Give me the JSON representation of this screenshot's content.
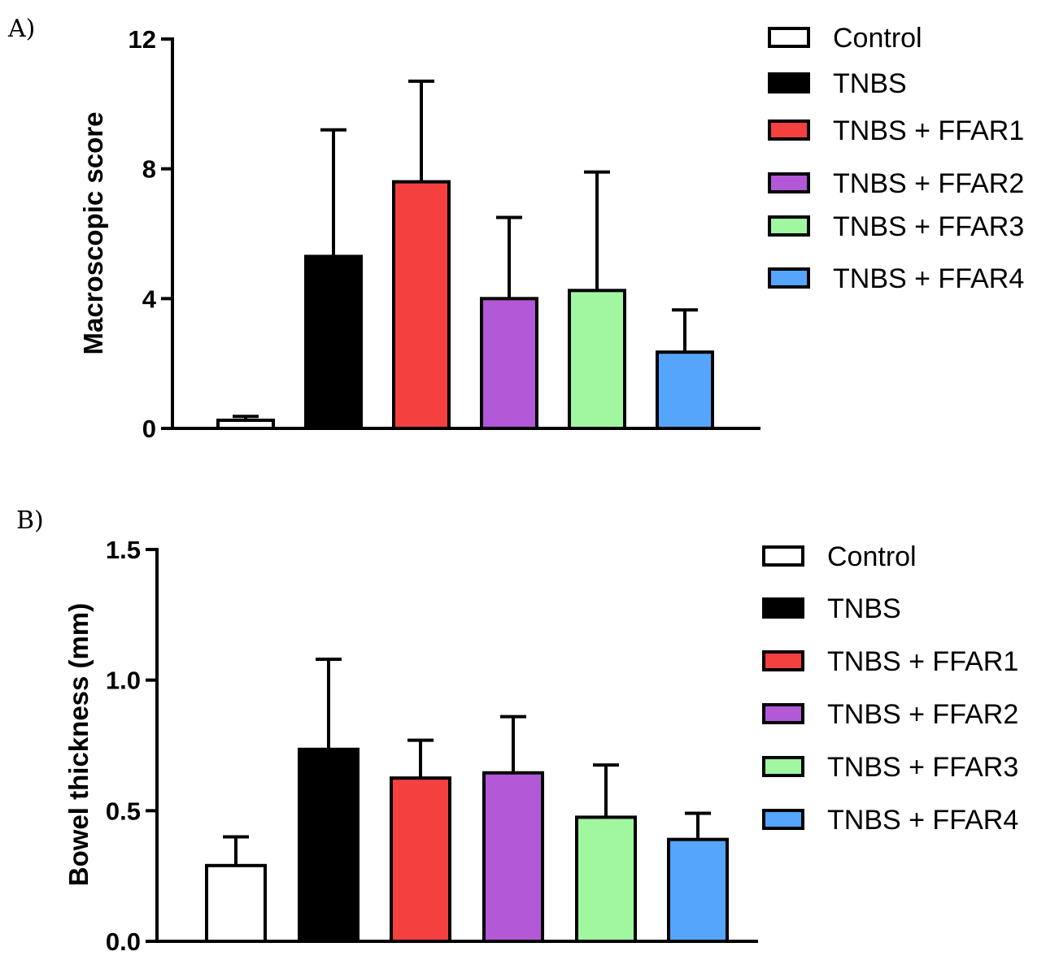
{
  "chart_data": [
    {
      "type": "bar",
      "panel_label": "A)",
      "title": "",
      "xlabel": "",
      "ylabel": "Macroscopic score",
      "ylim": [
        0,
        12
      ],
      "yticks": [
        0,
        4,
        8,
        12
      ],
      "ytick_labels": [
        "0",
        "4",
        "8",
        "12"
      ],
      "categories": [
        "Control",
        "TNBS",
        "TNBS + FFAR1",
        "TNBS + FFAR2",
        "TNBS + FFAR3",
        "TNBS + FFAR4"
      ],
      "values": [
        0.25,
        5.3,
        7.6,
        4.0,
        4.25,
        2.35
      ],
      "errors": [
        0.12,
        3.9,
        3.1,
        2.5,
        3.65,
        1.3
      ],
      "colors": [
        "#ffffff",
        "#000000",
        "#f54040",
        "#b358d6",
        "#a0f7a0",
        "#55a5fc"
      ],
      "legend": [
        "Control",
        "TNBS",
        "TNBS + FFAR1",
        "TNBS + FFAR2",
        "TNBS + FFAR3",
        "TNBS + FFAR4"
      ],
      "legend_position": "right",
      "grid": false
    },
    {
      "type": "bar",
      "panel_label": "B)",
      "title": "",
      "xlabel": "",
      "ylabel": "Bowel thickness (mm)",
      "ylim": [
        0,
        1.5
      ],
      "yticks": [
        0,
        0.5,
        1.0,
        1.5
      ],
      "ytick_labels": [
        "0.0",
        "0.5",
        "1.0",
        "1.5"
      ],
      "categories": [
        "Control",
        "TNBS",
        "TNBS + FFAR1",
        "TNBS + FFAR2",
        "TNBS + FFAR3",
        "TNBS + FFAR4"
      ],
      "values": [
        0.29,
        0.735,
        0.625,
        0.645,
        0.475,
        0.39
      ],
      "errors": [
        0.11,
        0.345,
        0.145,
        0.215,
        0.2,
        0.1
      ],
      "colors": [
        "#ffffff",
        "#000000",
        "#f54040",
        "#b358d6",
        "#a0f7a0",
        "#55a5fc"
      ],
      "legend": [
        "Control",
        "TNBS",
        "TNBS + FFAR1",
        "TNBS + FFAR2",
        "TNBS + FFAR3",
        "TNBS + FFAR4"
      ],
      "legend_position": "right",
      "grid": false
    }
  ]
}
